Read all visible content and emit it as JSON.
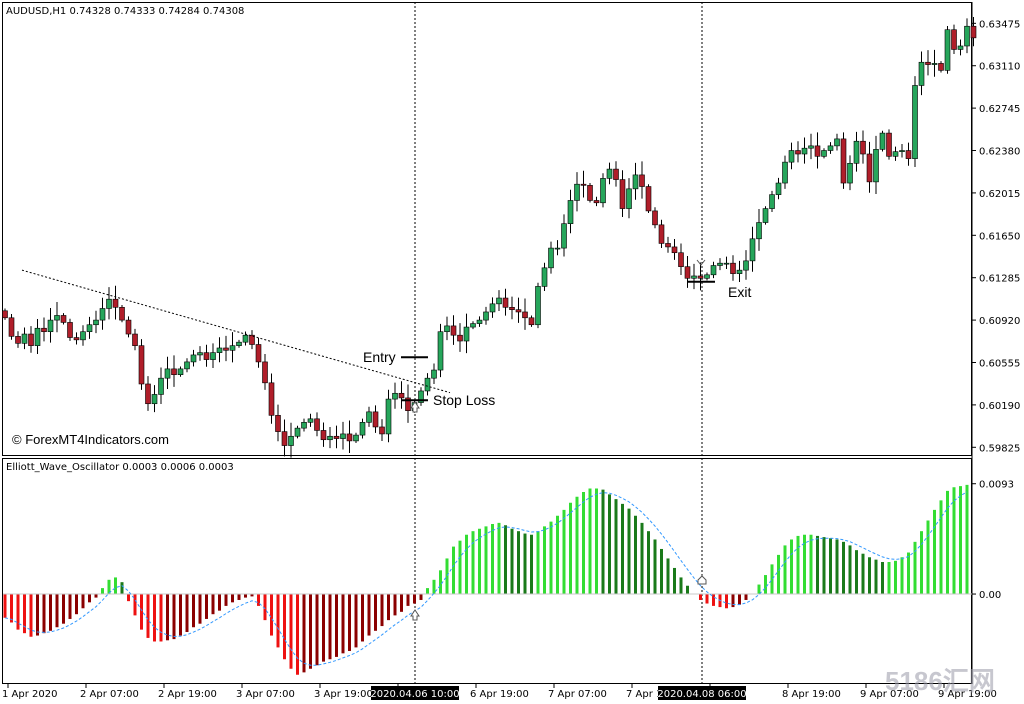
{
  "header": {
    "symbol_line": "AUDUSD,H1  0.74328 0.74333 0.74284 0.74308",
    "indicator_line": "Elliott_Wave_Oscillator 0.0003 0.0006 0.0003"
  },
  "watermark": "© ForexMT4Indicators.com",
  "corner_watermark": "5186汇网",
  "annotations": {
    "entry": "Entry",
    "stop_loss": "Stop Loss",
    "exit": "Exit"
  },
  "colors": {
    "bull": "#26a65b",
    "bear": "#b01e2a",
    "osc_bright_green": "#33dd33",
    "osc_dark_green": "#1a7a1a",
    "osc_bright_red": "#ee1111",
    "osc_dark_red": "#8b0000",
    "signal_line": "#3399ff"
  },
  "chart_data": [
    {
      "type": "candlestick",
      "ylim": [
        0.5975,
        0.6365
      ],
      "y_ticks": [
        "0.63475",
        "0.63110",
        "0.62745",
        "0.62380",
        "0.62015",
        "0.61650",
        "0.61285",
        "0.60920",
        "0.60555",
        "0.60190",
        "0.59825"
      ],
      "x_ticks": [
        "1 Apr 2020",
        "2 Apr 07:00",
        "2 Apr 19:00",
        "3 Apr 07:00",
        "3 Apr 19:00",
        "2020.04.06 10:00",
        "6 Apr 19:00",
        "7 Apr 07:00",
        "7 Apr 19:00",
        "2020.04.08 06:00",
        "8 Apr 19:00",
        "9 Apr 07:00",
        "9 Apr 19:00"
      ],
      "closes": [
        0.6094,
        0.6078,
        0.6072,
        0.608,
        0.607,
        0.6085,
        0.6082,
        0.6092,
        0.6096,
        0.609,
        0.6077,
        0.6075,
        0.6082,
        0.6088,
        0.6092,
        0.6102,
        0.611,
        0.6103,
        0.6092,
        0.608,
        0.607,
        0.6037,
        0.602,
        0.6028,
        0.6042,
        0.605,
        0.6045,
        0.605,
        0.6056,
        0.6062,
        0.6064,
        0.6058,
        0.6064,
        0.6068,
        0.6066,
        0.607,
        0.6073,
        0.6079,
        0.6071,
        0.6056,
        0.6038,
        0.601,
        0.5996,
        0.5984,
        0.5992,
        0.5999,
        0.6004,
        0.6007,
        0.5997,
        0.5989,
        0.5992,
        0.599,
        0.5994,
        0.5988,
        0.5993,
        0.6004,
        0.6013,
        0.6,
        0.5994,
        0.6024,
        0.6029,
        0.6025,
        0.6014,
        0.6021,
        0.6031,
        0.6042,
        0.6049,
        0.6082,
        0.6087,
        0.6079,
        0.6074,
        0.6086,
        0.6089,
        0.6092,
        0.6099,
        0.6106,
        0.6111,
        0.6103,
        0.6101,
        0.6099,
        0.6094,
        0.6088,
        0.6121,
        0.6137,
        0.6154,
        0.6154,
        0.6175,
        0.6195,
        0.6209,
        0.6208,
        0.6195,
        0.6193,
        0.6214,
        0.6222,
        0.6213,
        0.6188,
        0.6205,
        0.6217,
        0.6207,
        0.6186,
        0.6174,
        0.6158,
        0.6155,
        0.615,
        0.6138,
        0.6128,
        0.613,
        0.6128,
        0.6131,
        0.6139,
        0.6141,
        0.6141,
        0.6132,
        0.6135,
        0.6143,
        0.6162,
        0.6176,
        0.6188,
        0.62,
        0.621,
        0.6228,
        0.6238,
        0.6235,
        0.624,
        0.6242,
        0.6233,
        0.6238,
        0.6242,
        0.6248,
        0.621,
        0.6227,
        0.6246,
        0.6235,
        0.6211,
        0.6239,
        0.6253,
        0.6233,
        0.6237,
        0.6238,
        0.6231,
        0.6294,
        0.6314,
        0.6312,
        0.6313,
        0.6307,
        0.6342,
        0.6325,
        0.6328,
        0.6345,
        0.6335
      ],
      "trendline": {
        "x": [
          "1 Apr 2020",
          "2020.04.06 10:00"
        ],
        "y": [
          0.6135,
          0.6033
        ]
      },
      "entry_price": 0.606,
      "stop_loss_price": 0.6023,
      "exit_price": 0.6125
    },
    {
      "type": "bar",
      "name": "Elliott_Wave_Oscillator",
      "ylim": [
        -0.0075,
        0.0113
      ],
      "y_ticks": [
        "0.0093",
        "0.00"
      ],
      "values": [
        -0.002,
        -0.0024,
        -0.003,
        -0.0033,
        -0.0036,
        -0.0035,
        -0.0033,
        -0.0031,
        -0.0028,
        -0.0025,
        -0.0021,
        -0.0017,
        -0.0012,
        -0.0007,
        -0.0003,
        0.0005,
        0.0012,
        0.0014,
        0.001,
        -0.0006,
        -0.0018,
        -0.003,
        -0.0037,
        -0.004,
        -0.004,
        -0.0039,
        -0.0038,
        -0.0035,
        -0.0032,
        -0.0028,
        -0.0025,
        -0.0021,
        -0.0017,
        -0.0014,
        -0.001,
        -0.0007,
        -0.0005,
        -0.0003,
        -0.0002,
        -0.001,
        -0.0022,
        -0.0035,
        -0.0045,
        -0.0055,
        -0.0063,
        -0.0068,
        -0.0066,
        -0.0063,
        -0.006,
        -0.0057,
        -0.0055,
        -0.0053,
        -0.005,
        -0.0048,
        -0.0045,
        -0.004,
        -0.0035,
        -0.0031,
        -0.0027,
        -0.0022,
        -0.0018,
        -0.0015,
        -0.001,
        -0.0008,
        -0.0005,
        0.0005,
        0.0012,
        0.002,
        0.003,
        0.004,
        0.0045,
        0.005,
        0.0053,
        0.0055,
        0.0057,
        0.0059,
        0.006,
        0.0058,
        0.0055,
        0.0053,
        0.0051,
        0.005,
        0.0053,
        0.0057,
        0.0061,
        0.0066,
        0.0071,
        0.0077,
        0.0082,
        0.0086,
        0.0089,
        0.0089,
        0.0088,
        0.0084,
        0.008,
        0.0076,
        0.0072,
        0.0066,
        0.006,
        0.0053,
        0.0046,
        0.0038,
        0.003,
        0.0022,
        0.0014,
        0.0007,
        0.0,
        -0.0005,
        -0.0008,
        -0.001,
        -0.0011,
        -0.0012,
        -0.0011,
        -0.0009,
        -0.0005,
        0.0,
        0.0008,
        0.0016,
        0.0025,
        0.0033,
        0.0041,
        0.0046,
        0.0049,
        0.005,
        0.005,
        0.0049,
        0.0048,
        0.0047,
        0.0046,
        0.0044,
        0.0041,
        0.0037,
        0.0034,
        0.0031,
        0.0029,
        0.0027,
        0.0027,
        0.0028,
        0.0031,
        0.0035,
        0.0044,
        0.0053,
        0.0062,
        0.0071,
        0.0079,
        0.0087,
        0.009,
        0.0091,
        0.0092
      ]
    }
  ]
}
